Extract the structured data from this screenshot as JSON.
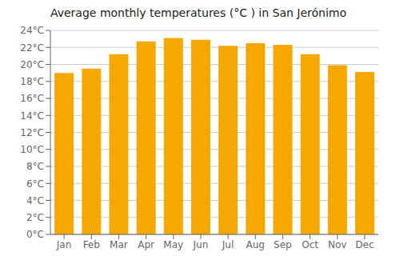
{
  "chart_data": {
    "type": "bar",
    "title": "Average monthly temperatures (°C ) in San Jerónimo",
    "categories": [
      "Jan",
      "Feb",
      "Mar",
      "Apr",
      "May",
      "Jun",
      "Jul",
      "Aug",
      "Sep",
      "Oct",
      "Nov",
      "Dec"
    ],
    "values": [
      19.0,
      19.5,
      21.2,
      22.7,
      23.1,
      22.9,
      22.2,
      22.5,
      22.3,
      21.2,
      19.9,
      19.1
    ],
    "color": "#F5A800",
    "ylim": [
      0,
      24
    ],
    "yticks": [
      {
        "value": 0,
        "label": "0°C"
      },
      {
        "value": 2,
        "label": "2°C"
      },
      {
        "value": 4,
        "label": "4°C"
      },
      {
        "value": 6,
        "label": "6°C"
      },
      {
        "value": 8,
        "label": "8°C"
      },
      {
        "value": 10,
        "label": "10°C"
      },
      {
        "value": 12,
        "label": "12°C"
      },
      {
        "value": 14,
        "label": "14°C"
      },
      {
        "value": 16,
        "label": "16°C"
      },
      {
        "value": 18,
        "label": "18°C"
      },
      {
        "value": 20,
        "label": "20°C"
      },
      {
        "value": 22,
        "label": "22°C"
      },
      {
        "value": 24,
        "label": "24°C"
      }
    ],
    "grid": true
  }
}
